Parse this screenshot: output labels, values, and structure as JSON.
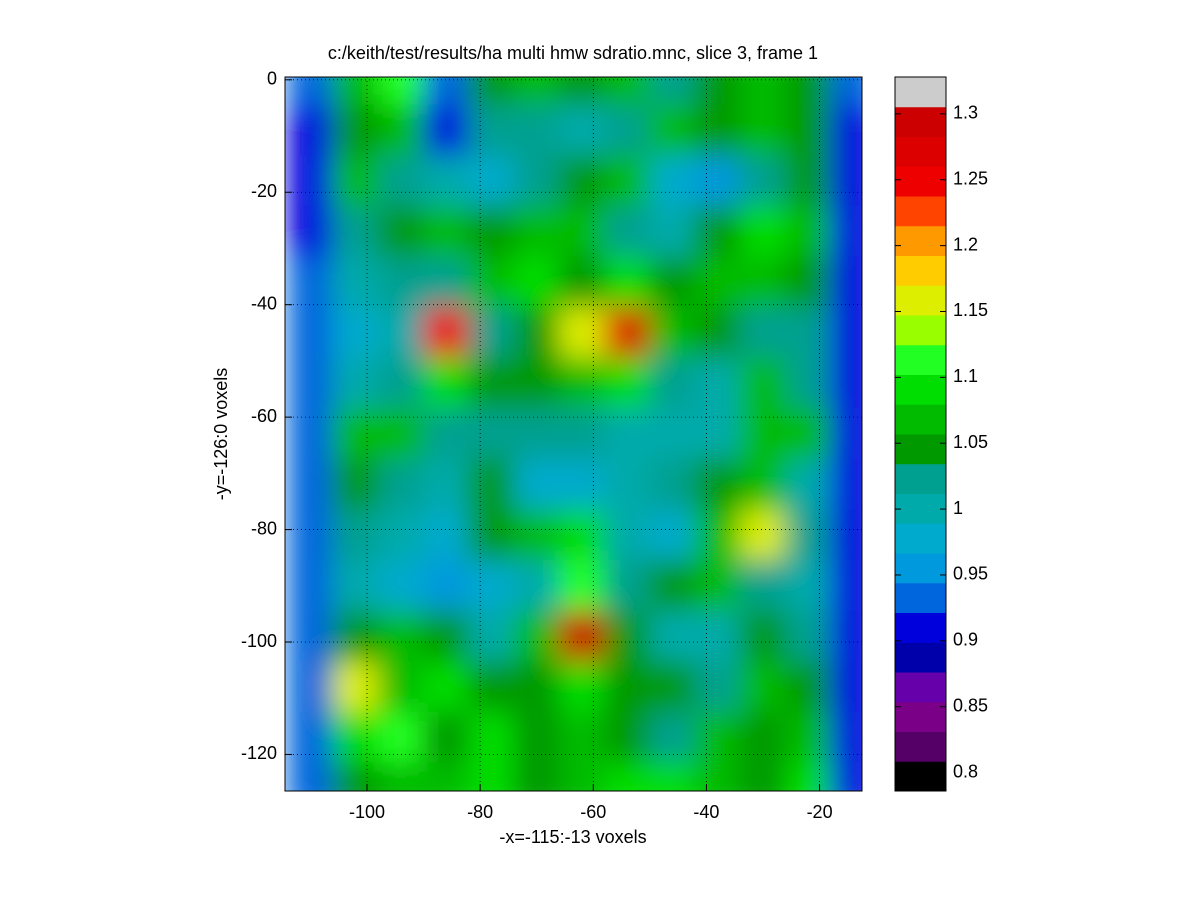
{
  "chart_data": {
    "type": "heatmap",
    "title": "c:/keith/test/results/ha multi hmw sdratio.mnc, slice 3, frame 1",
    "x_label": "-x=-115:-13 voxels",
    "y_label": "-y=-126:0 voxels",
    "x": [
      -110,
      -102,
      -94,
      -86,
      -78,
      -70,
      -62,
      -54,
      -46,
      -38,
      -30,
      -22,
      -14
    ],
    "y": [
      0,
      -9,
      -18,
      -27,
      -36,
      -45,
      -54,
      -63,
      -72,
      -81,
      -90,
      -99,
      -108,
      -117,
      -126
    ],
    "values": [
      [
        0.93,
        1.06,
        1.12,
        0.93,
        1.05,
        1.06,
        1.04,
        1.07,
        1.02,
        1.04,
        1.06,
        1.05,
        0.93
      ],
      [
        0.92,
        1.05,
        1.06,
        0.9,
        1.02,
        1.03,
        1.0,
        1.03,
        1.06,
        1.04,
        1.07,
        1.05,
        0.92
      ],
      [
        0.92,
        1.06,
        1.02,
        1.0,
        0.98,
        1.02,
        1.05,
        1.06,
        0.97,
        0.96,
        1.02,
        1.04,
        0.91
      ],
      [
        0.92,
        1.02,
        1.05,
        1.06,
        1.04,
        1.07,
        1.06,
        1.02,
        1.01,
        1.05,
        1.08,
        1.06,
        0.91
      ],
      [
        0.93,
        0.99,
        1.03,
        1.02,
        1.06,
        1.1,
        1.05,
        1.1,
        1.04,
        1.07,
        1.06,
        1.05,
        0.92
      ],
      [
        0.93,
        0.97,
        1.0,
        1.26,
        1.03,
        1.04,
        1.15,
        1.28,
        1.07,
        1.04,
        1.03,
        1.02,
        0.92
      ],
      [
        0.93,
        1.0,
        1.03,
        1.08,
        1.04,
        1.05,
        1.06,
        1.09,
        1.02,
        1.0,
        1.06,
        1.03,
        0.92
      ],
      [
        0.93,
        1.06,
        1.06,
        1.03,
        1.02,
        1.02,
        1.03,
        1.01,
        1.0,
        0.99,
        1.07,
        1.06,
        0.92
      ],
      [
        0.93,
        1.05,
        1.02,
        1.0,
        1.05,
        0.98,
        0.97,
        1.0,
        1.02,
        1.04,
        1.07,
        1.0,
        0.92
      ],
      [
        0.93,
        1.03,
        1.0,
        0.98,
        1.04,
        1.06,
        1.08,
        1.0,
        0.98,
        1.06,
        1.15,
        1.02,
        0.92
      ],
      [
        0.93,
        1.01,
        0.98,
        0.96,
        0.98,
        1.0,
        1.12,
        1.02,
        1.05,
        1.07,
        1.02,
        1.0,
        0.92
      ],
      [
        0.93,
        1.05,
        1.06,
        1.04,
        1.0,
        1.06,
        1.3,
        1.05,
        1.0,
        1.01,
        1.04,
        1.03,
        0.92
      ],
      [
        0.93,
        1.16,
        1.06,
        1.08,
        1.04,
        1.05,
        1.1,
        1.05,
        1.05,
        1.02,
        1.06,
        1.04,
        0.92
      ],
      [
        0.93,
        1.08,
        1.12,
        1.05,
        1.1,
        1.04,
        1.06,
        1.05,
        1.03,
        1.06,
        1.05,
        1.06,
        0.92
      ],
      [
        0.93,
        1.05,
        1.06,
        1.06,
        1.09,
        1.05,
        1.06,
        1.08,
        1.08,
        1.06,
        1.05,
        1.1,
        0.92
      ]
    ],
    "xlim": [
      -114.5,
      -12.5
    ],
    "ylim": [
      -126.5,
      0.5
    ],
    "xticks": [
      -100,
      -80,
      -60,
      -40,
      -20
    ],
    "yticks": [
      0,
      -20,
      -40,
      -60,
      -80,
      -100,
      -120
    ],
    "grid": true,
    "clim": [
      0.786,
      1.328
    ],
    "cticks": [
      0.8,
      0.85,
      0.9,
      0.95,
      1,
      1.05,
      1.1,
      1.15,
      1.2,
      1.25,
      1.3
    ],
    "colormap": [
      "#000000",
      "#550066",
      "#7a0088",
      "#6600aa",
      "#0000aa",
      "#0000dd",
      "#0066dd",
      "#0099dd",
      "#00aacc",
      "#00aaaa",
      "#00a090",
      "#009900",
      "#00bb00",
      "#00dd00",
      "#22ff22",
      "#99ff00",
      "#ddee00",
      "#ffcc00",
      "#ff9900",
      "#ff4400",
      "#ee0000",
      "#dd0000",
      "#cc0000",
      "#cccccc"
    ]
  }
}
